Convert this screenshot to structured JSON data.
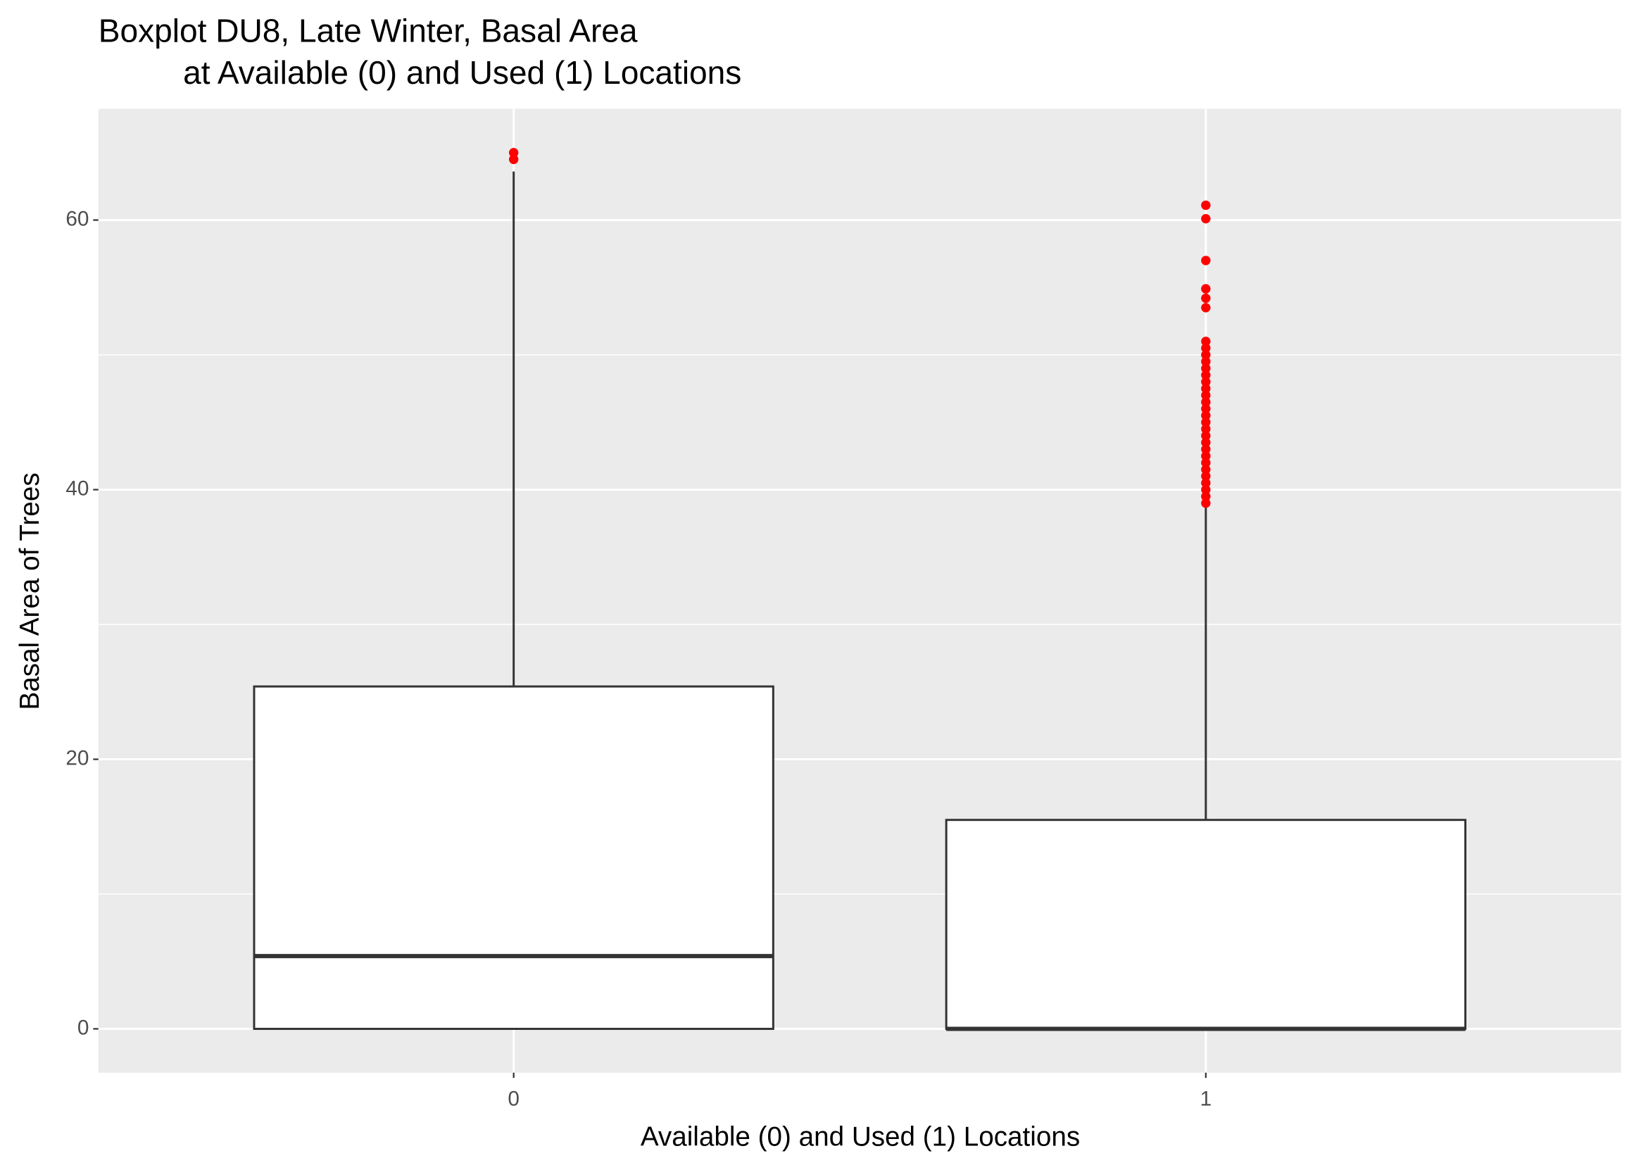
{
  "chart_data": {
    "type": "box",
    "title": [
      "Boxplot DU8, Late Winter, Basal Area",
      "at Available (0) and Used (1) Locations"
    ],
    "x_label": "Available (0) and Used (1) Locations",
    "y_label": "Basal Area of Trees",
    "categories": [
      "0",
      "1"
    ],
    "boxes": [
      {
        "min": 0,
        "q1": 0,
        "median": 5.4,
        "q3": 25.4,
        "max": 63.6,
        "outliers": [
          64.5,
          65
        ]
      },
      {
        "min": 0,
        "q1": 0,
        "median": 0,
        "q3": 15.5,
        "max": 38.9,
        "outliers": [
          39,
          39.5,
          40,
          40.5,
          41,
          41.5,
          42,
          42.5,
          43,
          43.5,
          44,
          44.5,
          45,
          45.5,
          46,
          46.5,
          47,
          47.5,
          48,
          48.5,
          49,
          49.5,
          50,
          50.5,
          51,
          53.5,
          54.2,
          54.9,
          57,
          60.1,
          61.1
        ]
      }
    ],
    "box_fill": "#ffffff",
    "box_stroke": "#333333",
    "outlier_color": "#ff0000",
    "panel_color": "#ebebeb",
    "ylim": [
      -3.25,
      68.25
    ],
    "yticks": [
      0,
      20,
      40,
      60
    ],
    "yminor": [
      10,
      30,
      50
    ],
    "grid": true
  }
}
